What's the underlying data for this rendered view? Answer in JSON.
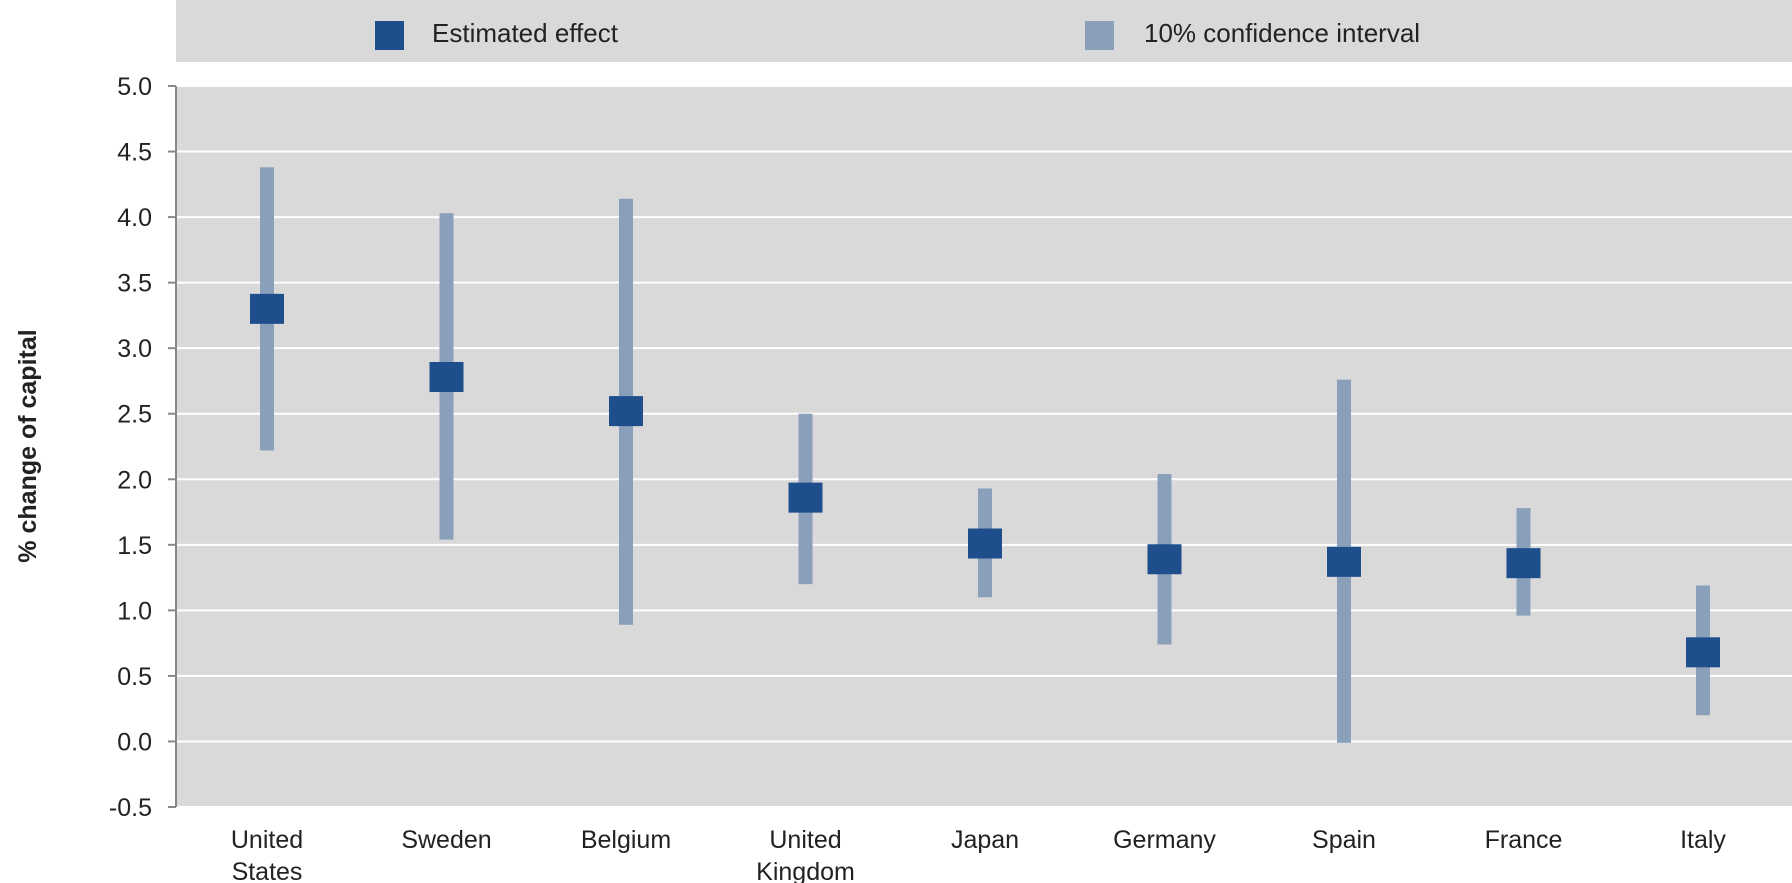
{
  "chart_data": {
    "type": "scatter",
    "title": "",
    "xlabel": "",
    "ylabel": "% change of capital",
    "ylim": [
      -0.5,
      5.0
    ],
    "yticks": [
      "5.0",
      "4.5",
      "4.0",
      "3.5",
      "3.0",
      "2.5",
      "2.0",
      "1.5",
      "1.0",
      "0.5",
      "0.0",
      "-0.5"
    ],
    "grid": true,
    "legend_position": "top",
    "legend": [
      {
        "label": "Estimated effect",
        "color": "#1f4e8c"
      },
      {
        "label": "10% confidence interval",
        "color": "#8a9fba"
      }
    ],
    "categories": [
      {
        "lines": [
          "United",
          "States"
        ]
      },
      {
        "lines": [
          "Sweden"
        ]
      },
      {
        "lines": [
          "Belgium"
        ]
      },
      {
        "lines": [
          "United",
          "Kingdom"
        ]
      },
      {
        "lines": [
          "Japan"
        ]
      },
      {
        "lines": [
          "Germany"
        ]
      },
      {
        "lines": [
          "Spain"
        ]
      },
      {
        "lines": [
          "France"
        ]
      },
      {
        "lines": [
          "Italy"
        ]
      }
    ],
    "series": [
      {
        "name": "Estimated effect",
        "values": [
          3.3,
          2.78,
          2.52,
          1.86,
          1.51,
          1.39,
          1.37,
          1.36,
          0.68
        ]
      },
      {
        "name": "10% confidence interval",
        "low": [
          2.22,
          1.54,
          0.89,
          1.2,
          1.1,
          0.74,
          -0.01,
          0.96,
          0.2
        ],
        "high": [
          4.38,
          4.03,
          4.14,
          2.5,
          1.93,
          2.04,
          2.76,
          1.78,
          1.19
        ]
      }
    ]
  }
}
